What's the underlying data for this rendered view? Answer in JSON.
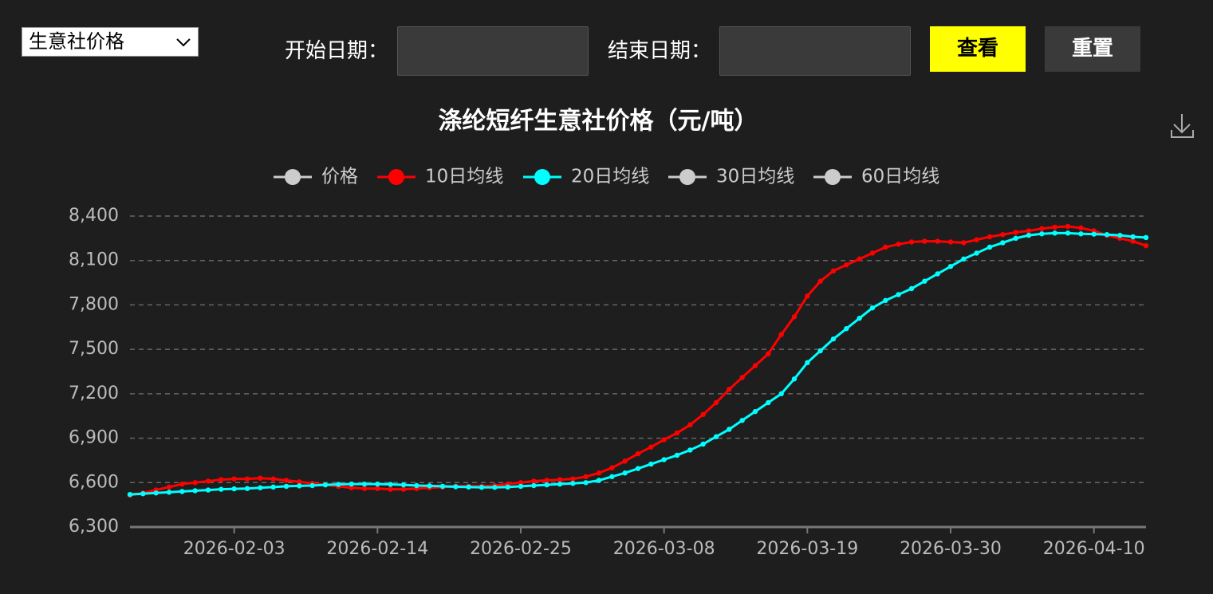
{
  "controls": {
    "select": "生意社价格",
    "start_label": "开始日期：",
    "end_label": "结束日期：",
    "view_button": "查看",
    "reset_button": "重置"
  },
  "chart_data": {
    "type": "line",
    "title": "涤纶短纤生意社价格（元/吨）",
    "x": [
      "2026-01-26",
      "2026-01-27",
      "2026-01-28",
      "2026-01-29",
      "2026-01-30",
      "2026-01-31",
      "2026-02-01",
      "2026-02-02",
      "2026-02-03",
      "2026-02-04",
      "2026-02-05",
      "2026-02-06",
      "2026-02-07",
      "2026-02-08",
      "2026-02-09",
      "2026-02-10",
      "2026-02-11",
      "2026-02-12",
      "2026-02-13",
      "2026-02-14",
      "2026-02-15",
      "2026-02-16",
      "2026-02-17",
      "2026-02-18",
      "2026-02-19",
      "2026-02-20",
      "2026-02-21",
      "2026-02-22",
      "2026-02-23",
      "2026-02-24",
      "2026-02-25",
      "2026-02-26",
      "2026-02-27",
      "2026-02-28",
      "2026-03-01",
      "2026-03-02",
      "2026-03-03",
      "2026-03-04",
      "2026-03-05",
      "2026-03-06",
      "2026-03-07",
      "2026-03-08",
      "2026-03-09",
      "2026-03-10",
      "2026-03-11",
      "2026-03-12",
      "2026-03-13",
      "2026-03-14",
      "2026-03-15",
      "2026-03-16",
      "2026-03-17",
      "2026-03-18",
      "2026-03-19",
      "2026-03-20",
      "2026-03-21",
      "2026-03-22",
      "2026-03-23",
      "2026-03-24",
      "2026-03-25",
      "2026-03-26",
      "2026-03-27",
      "2026-03-28",
      "2026-03-29",
      "2026-03-30",
      "2026-03-31",
      "2026-04-01",
      "2026-04-02",
      "2026-04-03",
      "2026-04-04",
      "2026-04-05",
      "2026-04-06",
      "2026-04-07",
      "2026-04-08",
      "2026-04-09",
      "2026-04-10",
      "2026-04-11",
      "2026-04-12",
      "2026-04-13",
      "2026-04-14"
    ],
    "xticks": [
      "2026-02-03",
      "2026-02-14",
      "2026-02-25",
      "2026-03-08",
      "2026-03-19",
      "2026-03-30",
      "2026-04-10"
    ],
    "series": [
      {
        "name": "价格",
        "color": "#cccccc",
        "visible": false
      },
      {
        "name": "10日均线",
        "color": "#ff0000",
        "visible": true,
        "values": [
          6515,
          6530,
          6550,
          6570,
          6590,
          6600,
          6610,
          6620,
          6625,
          6625,
          6630,
          6625,
          6615,
          6605,
          6595,
          6585,
          6575,
          6565,
          6560,
          6560,
          6555,
          6555,
          6560,
          6565,
          6570,
          6575,
          6575,
          6575,
          6580,
          6590,
          6600,
          6610,
          6615,
          6620,
          6625,
          6640,
          6665,
          6700,
          6745,
          6795,
          6840,
          6890,
          6935,
          6990,
          7060,
          7140,
          7230,
          7310,
          7390,
          7470,
          7600,
          7720,
          7860,
          7960,
          8030,
          8070,
          8110,
          8150,
          8190,
          8210,
          8225,
          8230,
          8230,
          8225,
          8220,
          8240,
          8260,
          8275,
          8290,
          8300,
          8315,
          8325,
          8330,
          8320,
          8300,
          8270,
          8250,
          8230,
          8200
        ]
      },
      {
        "name": "20日均线",
        "color": "#00ffff",
        "visible": true,
        "values": [
          6520,
          6525,
          6530,
          6535,
          6540,
          6545,
          6550,
          6555,
          6558,
          6560,
          6565,
          6570,
          6575,
          6578,
          6580,
          6585,
          6588,
          6590,
          6590,
          6590,
          6588,
          6585,
          6580,
          6578,
          6575,
          6572,
          6570,
          6568,
          6568,
          6570,
          6575,
          6580,
          6585,
          6590,
          6595,
          6600,
          6615,
          6640,
          6665,
          6695,
          6725,
          6755,
          6785,
          6820,
          6860,
          6910,
          6960,
          7020,
          7080,
          7140,
          7200,
          7300,
          7410,
          7490,
          7570,
          7640,
          7710,
          7780,
          7830,
          7870,
          7910,
          7960,
          8010,
          8060,
          8110,
          8150,
          8190,
          8220,
          8250,
          8270,
          8280,
          8285,
          8285,
          8280,
          8278,
          8275,
          8270,
          8260,
          8255
        ]
      },
      {
        "name": "30日均线",
        "color": "#cccccc",
        "visible": false
      },
      {
        "name": "60日均线",
        "color": "#cccccc",
        "visible": false
      }
    ],
    "ylim": [
      6300,
      8400
    ],
    "yticks": [
      {
        "value": 6300,
        "label": "6,300"
      },
      {
        "value": 6600,
        "label": "6,600"
      },
      {
        "value": 6900,
        "label": "6,900"
      },
      {
        "value": 7200,
        "label": "7,200"
      },
      {
        "value": 7500,
        "label": "7,500"
      },
      {
        "value": 7800,
        "label": "7,800"
      },
      {
        "value": 8100,
        "label": "8,100"
      },
      {
        "value": 8400,
        "label": "8,400"
      }
    ],
    "grid": true
  }
}
